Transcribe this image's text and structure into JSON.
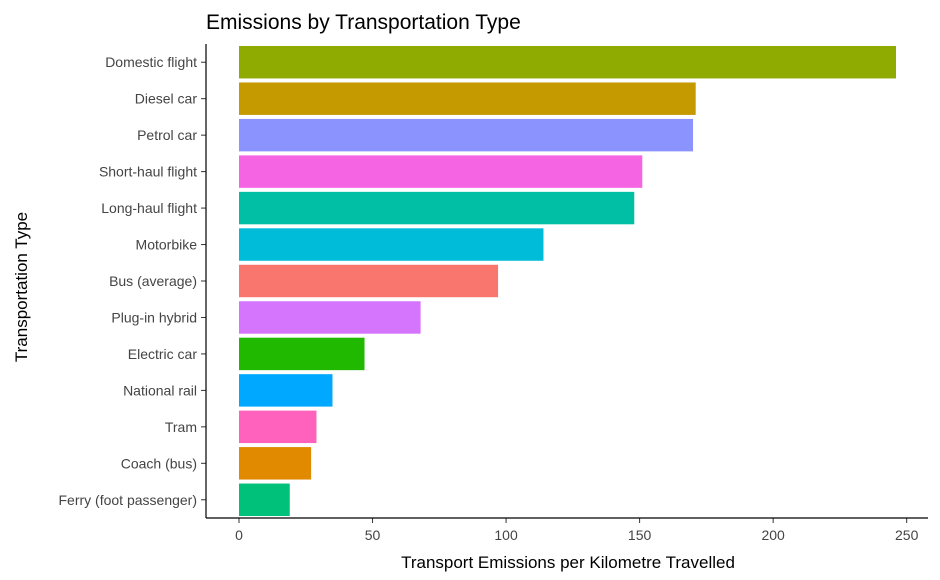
{
  "chart_data": {
    "type": "bar",
    "orientation": "horizontal",
    "title": "Emissions by Transportation Type",
    "xlabel": "Transport Emissions per Kilometre Travelled",
    "ylabel": "Transportation Type",
    "xlim": [
      0,
      255
    ],
    "xticks": [
      0,
      50,
      100,
      150,
      200,
      250
    ],
    "grid": false,
    "legend": "none",
    "categories": [
      "Domestic flight",
      "Diesel car",
      "Petrol car",
      "Short-haul flight",
      "Long-haul flight",
      "Motorbike",
      "Bus (average)",
      "Plug-in hybrid",
      "Electric car",
      "National rail",
      "Tram",
      "Coach (bus)",
      "Ferry (foot passenger)"
    ],
    "values": [
      246,
      171,
      170,
      151,
      148,
      114,
      97,
      68,
      47,
      35,
      29,
      27,
      19
    ],
    "colors": [
      "#8FAA00",
      "#C49A00",
      "#8B93FF",
      "#F564E3",
      "#00BFA5",
      "#00BCD8",
      "#F8766D",
      "#D575FE",
      "#21B800",
      "#00A9FF",
      "#FF62BC",
      "#E18A00",
      "#00C17A"
    ]
  }
}
